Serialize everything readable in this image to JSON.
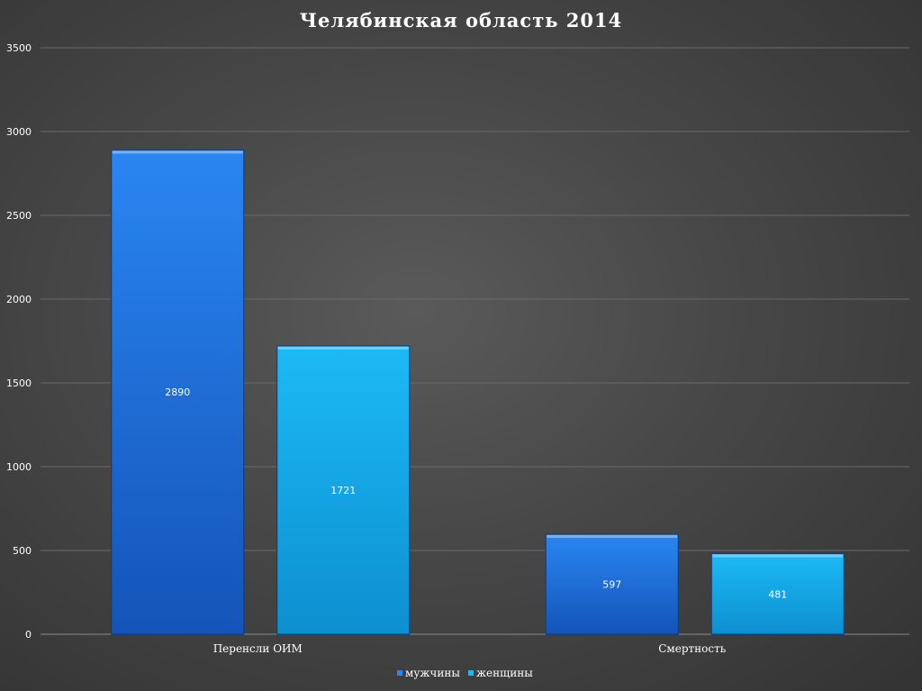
{
  "chart_data": {
    "type": "bar",
    "title": "Челябинская область 2014",
    "xlabel": "",
    "ylabel": "",
    "categories": [
      "Перенсли ОИМ",
      "Смертность"
    ],
    "series": [
      {
        "name": "мужчины",
        "values": [
          2890,
          597
        ],
        "color": "#1f6fd6"
      },
      {
        "name": "женщины",
        "values": [
          1721,
          481
        ],
        "color": "#12a6e8"
      }
    ],
    "ylim": [
      0,
      3500
    ],
    "yticks": [
      0,
      500,
      1000,
      1500,
      2000,
      2500,
      3000,
      3500
    ],
    "grid": true,
    "legend": "bottom",
    "data_labels": true
  }
}
